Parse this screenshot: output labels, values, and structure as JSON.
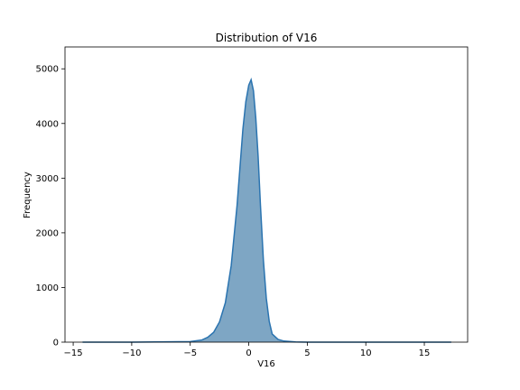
{
  "chart_data": {
    "type": "area",
    "title": "Distribution of V16",
    "xlabel": "V16",
    "ylabel": "Frequency",
    "xlim": [
      -15.7,
      18.7
    ],
    "ylim": [
      0,
      5400
    ],
    "xticks": [
      -15,
      -10,
      -5,
      0,
      5,
      10,
      15
    ],
    "yticks": [
      0,
      1000,
      2000,
      3000,
      4000,
      5000
    ],
    "grid": false,
    "colors": {
      "fill": "#7ea6c4",
      "line": "#2b74b0"
    },
    "x": [
      -14.2,
      -10,
      -5,
      -4,
      -3.5,
      -3,
      -2.5,
      -2,
      -1.5,
      -1,
      -0.75,
      -0.5,
      -0.25,
      0,
      0.2,
      0.4,
      0.6,
      0.8,
      1,
      1.25,
      1.5,
      1.75,
      2,
      2.5,
      3,
      4,
      5,
      10,
      17.3
    ],
    "y": [
      0,
      0,
      10,
      40,
      90,
      180,
      370,
      720,
      1400,
      2500,
      3200,
      3900,
      4400,
      4700,
      4800,
      4600,
      4100,
      3400,
      2500,
      1500,
      800,
      380,
      150,
      50,
      20,
      5,
      0,
      0,
      0
    ]
  }
}
